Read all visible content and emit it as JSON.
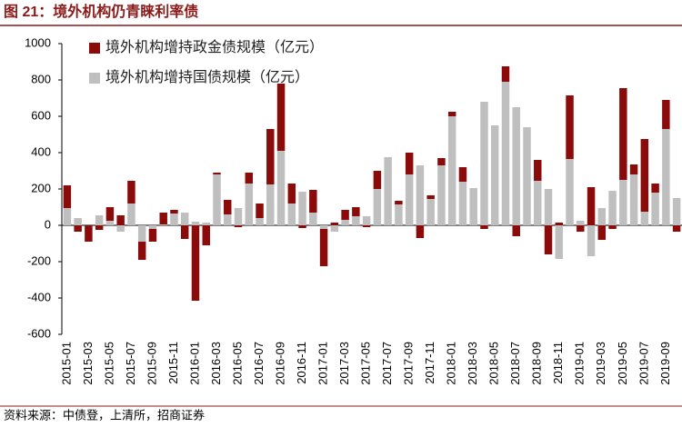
{
  "chart_data": {
    "type": "bar",
    "stacked": true,
    "title": "图 21：境外机构仍青睐利率债",
    "source": "资料来源：中债登，上清所，招商证券",
    "categories": [
      "2015-01",
      null,
      "2015-03",
      null,
      "2015-05",
      null,
      "2015-07",
      null,
      "2015-09",
      null,
      "2015-11",
      null,
      "2016-01",
      null,
      "2016-03",
      null,
      "2016-05",
      null,
      "2016-07",
      null,
      "2016-09",
      null,
      "2016-11",
      null,
      "2017-01",
      null,
      "2017-03",
      null,
      "2017-05",
      null,
      "2017-07",
      null,
      "2017-09",
      null,
      "2017-11",
      null,
      "2018-01",
      null,
      "2018-03",
      null,
      "2018-05",
      null,
      "2018-07",
      null,
      "2018-09",
      null,
      "2018-11",
      null,
      "2019-01",
      null,
      "2019-03",
      null,
      "2019-05",
      null,
      "2019-07",
      null,
      "2019-09",
      null
    ],
    "series": [
      {
        "name": "境外机构增持政金债规模（亿元）",
        "color": "#8b0a0a",
        "values": [
          125,
          -35,
          -90,
          -25,
          75,
          55,
          125,
          -100,
          -70,
          65,
          20,
          -75,
          -415,
          -110,
          10,
          80,
          -10,
          60,
          80,
          305,
          370,
          110,
          -15,
          125,
          -205,
          15,
          55,
          50,
          -10,
          100,
          0,
          20,
          120,
          -70,
          20,
          40,
          25,
          80,
          0,
          -20,
          0,
          85,
          -60,
          0,
          115,
          -160,
          15,
          350,
          -35,
          210,
          -80,
          -20,
          505,
          55,
          400,
          50,
          160,
          -35
        ]
      },
      {
        "name": "境外机构增持国债规模（亿元）",
        "color": "#bfbfbf",
        "values": [
          95,
          40,
          0,
          55,
          25,
          -35,
          120,
          -90,
          -20,
          5,
          65,
          70,
          20,
          15,
          280,
          60,
          95,
          230,
          40,
          225,
          410,
          120,
          185,
          70,
          -20,
          -35,
          30,
          50,
          50,
          200,
          375,
          115,
          280,
          330,
          145,
          330,
          600,
          240,
          205,
          680,
          550,
          790,
          650,
          540,
          245,
          200,
          -185,
          365,
          25,
          -170,
          95,
          190,
          250,
          280,
          75,
          180,
          530,
          150
        ]
      }
    ],
    "ylim": [
      -600,
      1000
    ],
    "yticks": [
      -600,
      -400,
      -200,
      0,
      200,
      400,
      600,
      800,
      1000
    ],
    "legend": "upper-left"
  }
}
